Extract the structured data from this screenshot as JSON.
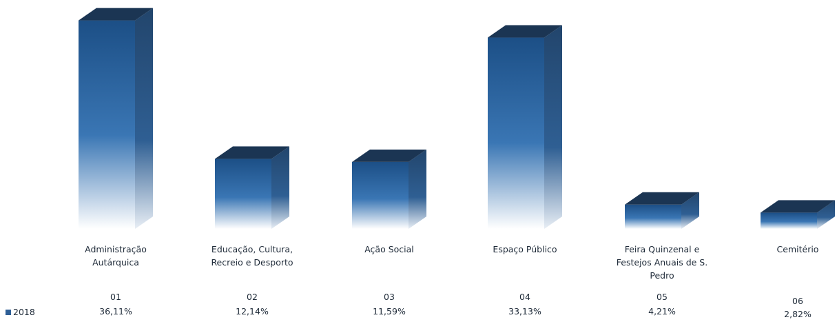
{
  "chart_data": {
    "type": "bar",
    "style": "3d-column",
    "categories": [
      "Administração Autárquica",
      "Educação, Cultura, Recreio e Desporto",
      "Ação Social",
      "Espaço Público",
      "Feira Quinzenal e Festejos Anuais de S. Pedro",
      "Cemitério"
    ],
    "category_lines": [
      [
        "Administração",
        "Autárquica"
      ],
      [
        "Educação, Cultura,",
        "Recreio e Desporto"
      ],
      [
        "Ação Social"
      ],
      [
        "Espaço Público"
      ],
      [
        "Feira Quinzenal e",
        "Festejos Anuais de S.",
        "Pedro"
      ],
      [
        "Cemitério"
      ]
    ],
    "codes": [
      "01",
      "02",
      "03",
      "04",
      "05",
      "06"
    ],
    "series": [
      {
        "name": "2018",
        "values": [
          36.11,
          12.14,
          11.59,
          33.13,
          4.21,
          2.82
        ],
        "value_labels": [
          "36,11%",
          "12,14%",
          "11,59%",
          "33,13%",
          "4,21%",
          "2,82%"
        ]
      }
    ],
    "legend_position": "bottom-left",
    "grid": false,
    "colors": {
      "front_top": "#1c4f86",
      "front_mid": "#3a76b4",
      "front_bottom": "#ffffff",
      "side": "#22456c",
      "top": "#1b3553",
      "legend_swatch": "#2e5f96"
    }
  }
}
